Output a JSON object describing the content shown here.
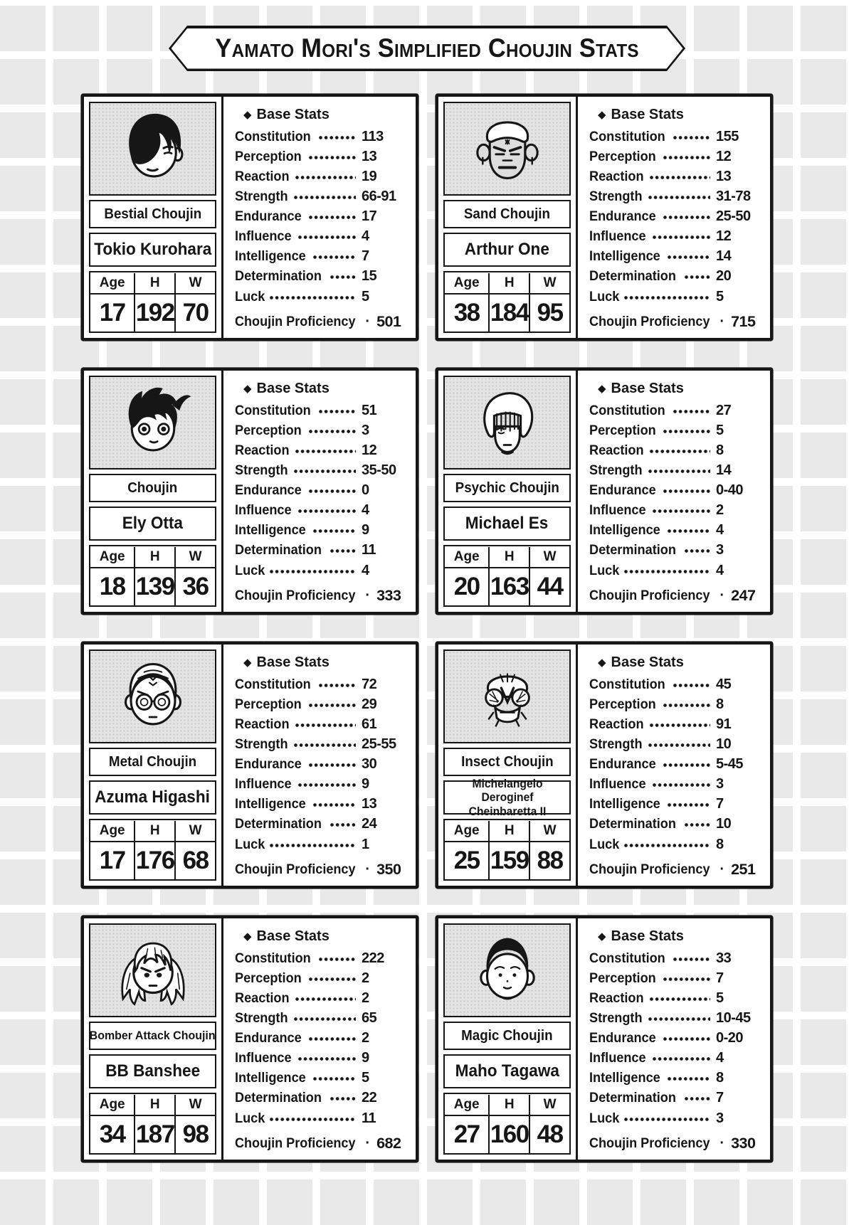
{
  "title": "Yamato Mori's Simplified Choujin Stats",
  "shared": {
    "base_stats_header": "Base Stats",
    "diamond_icon": "◆",
    "dot_separator": "·",
    "stat_labels": [
      "Constitution",
      "Perception",
      "Reaction",
      "Strength",
      "Endurance",
      "Influence",
      "Intelligence",
      "Determination",
      "Luck"
    ],
    "age_label": "Age",
    "height_label": "H",
    "weight_label": "W",
    "proficiency_label": "Choujin Proficiency",
    "colors": {
      "ink": "#161616",
      "tile_gray": "#e9e9e9",
      "portrait_bg": "#e4e4e4",
      "card_bg": "#ffffff"
    }
  },
  "cards": [
    {
      "type": "Bestial Choujin",
      "name": "Tokio Kurohara",
      "portrait_icon": "tokio-kurohara-face-icon",
      "age": "17",
      "height": "192",
      "weight": "70",
      "stats": [
        "113",
        "13",
        "19",
        "66-91",
        "17",
        "4",
        "7",
        "15",
        "5"
      ],
      "proficiency": "501"
    },
    {
      "type": "Sand Choujin",
      "name": "Arthur One",
      "portrait_icon": "arthur-one-face-icon",
      "age": "38",
      "height": "184",
      "weight": "95",
      "stats": [
        "155",
        "12",
        "13",
        "31-78",
        "25-50",
        "12",
        "14",
        "20",
        "5"
      ],
      "proficiency": "715"
    },
    {
      "type": "Choujin",
      "name": "Ely Otta",
      "portrait_icon": "ely-otta-face-icon",
      "age": "18",
      "height": "139",
      "weight": "36",
      "stats": [
        "51",
        "3",
        "12",
        "35-50",
        "0",
        "4",
        "9",
        "11",
        "4"
      ],
      "proficiency": "333"
    },
    {
      "type": "Psychic Choujin",
      "name": "Michael Es",
      "portrait_icon": "michael-es-face-icon",
      "age": "20",
      "height": "163",
      "weight": "44",
      "stats": [
        "27",
        "5",
        "8",
        "14",
        "0-40",
        "2",
        "4",
        "3",
        "4"
      ],
      "proficiency": "247"
    },
    {
      "type": "Metal Choujin",
      "name": "Azuma Higashi",
      "portrait_icon": "azuma-higashi-face-icon",
      "age": "17",
      "height": "176",
      "weight": "68",
      "stats": [
        "72",
        "29",
        "61",
        "25-55",
        "30",
        "9",
        "13",
        "24",
        "1"
      ],
      "proficiency": "350"
    },
    {
      "type": "Insect Choujin",
      "name": "Michelangelo Deroginef Cheinbaretta II",
      "portrait_icon": "michelangelo-face-icon",
      "age": "25",
      "height": "159",
      "weight": "88",
      "stats": [
        "45",
        "8",
        "91",
        "10",
        "5-45",
        "3",
        "7",
        "10",
        "8"
      ],
      "proficiency": "251"
    },
    {
      "type": "Bomber Attack Choujin",
      "name": "BB Banshee",
      "portrait_icon": "bb-banshee-face-icon",
      "age": "34",
      "height": "187",
      "weight": "98",
      "stats": [
        "222",
        "2",
        "2",
        "65",
        "2",
        "9",
        "5",
        "22",
        "11"
      ],
      "proficiency": "682"
    },
    {
      "type": "Magic Choujin",
      "name": "Maho Tagawa",
      "portrait_icon": "maho-tagawa-face-icon",
      "age": "27",
      "height": "160",
      "weight": "48",
      "stats": [
        "33",
        "7",
        "5",
        "10-45",
        "0-20",
        "4",
        "8",
        "7",
        "3"
      ],
      "proficiency": "330"
    }
  ]
}
